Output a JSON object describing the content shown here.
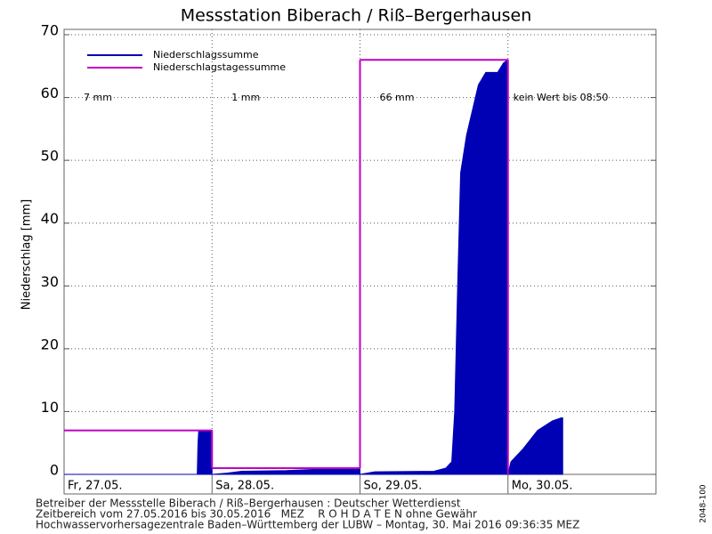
{
  "chart_data": {
    "type": "area",
    "title": "Messstation Biberach / Riß–Bergerhausen",
    "y_label": "Niederschlag [mm]",
    "xlim": [
      0,
      4
    ],
    "xticks": [
      {
        "value": 0,
        "label": "Fr, 27.05."
      },
      {
        "value": 1,
        "label": "Sa, 28.05."
      },
      {
        "value": 2,
        "label": "So, 29.05."
      },
      {
        "value": 3,
        "label": "Mo, 30.05."
      }
    ],
    "ylim": [
      0,
      70
    ],
    "yticks": [
      0,
      10,
      20,
      30,
      40,
      50,
      60,
      70
    ],
    "grid": true,
    "legend": "upper left",
    "series": [
      {
        "name": "Niederschlagssumme",
        "color": "#0000b4",
        "type": "area",
        "x": [
          0,
          0.9,
          0.905,
          0.91,
          1.0,
          1.0,
          1.1,
          1.2,
          1.5,
          1.7,
          2.0,
          2.0,
          2.1,
          2.5,
          2.58,
          2.62,
          2.64,
          2.66,
          2.68,
          2.72,
          2.76,
          2.8,
          2.85,
          2.93,
          2.97,
          3.0,
          3.0,
          3.02,
          3.1,
          3.2,
          3.3,
          3.36,
          3.37
        ],
        "values": [
          0,
          0,
          5,
          7,
          7,
          0,
          0.2,
          0.5,
          0.6,
          0.8,
          0.9,
          0,
          0.4,
          0.5,
          1,
          2,
          10,
          30,
          48,
          54,
          58,
          62,
          64,
          64,
          65.5,
          66,
          0,
          2,
          4,
          7,
          8.5,
          9,
          9
        ]
      },
      {
        "name": "Niederschlagstagessumme",
        "color": "#c000c0",
        "type": "step",
        "x": [
          0,
          1,
          2
        ],
        "values": [
          7,
          1,
          66
        ],
        "value_labels": [
          "7 mm",
          "1 mm",
          "66 mm"
        ]
      }
    ],
    "annotation": "kein Wert bis 08:50",
    "footer": [
      "Betreiber der Messstelle Biberach / Riß–Bergerhausen : Deutscher Wetterdienst",
      "Zeitbereich vom 27.05.2016 bis 30.05.2016   MEZ    R O H D A T E N ohne Gewähr",
      "Hochwasservorhersagezentrale Baden–Württemberg der LUBW – Montag, 30. Mai 2016 09:36:35 MEZ"
    ],
    "side_label": "2048-100"
  }
}
